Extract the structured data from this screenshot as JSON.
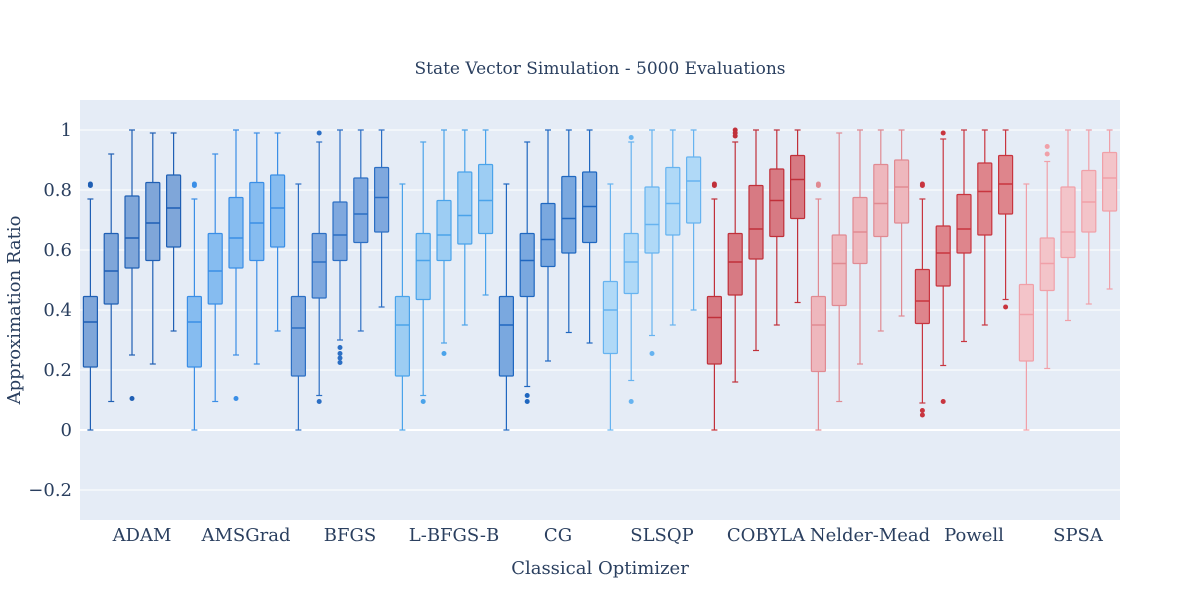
{
  "chart_data": {
    "type": "box",
    "title": "State Vector Simulation - 5000 Evaluations",
    "xlabel": "Classical Optimizer",
    "ylabel": "Approximation Ratio",
    "ylim": [
      -0.3,
      1.1
    ],
    "yticks": [
      -0.2,
      0,
      0.2,
      0.4,
      0.6,
      0.8,
      1
    ],
    "ytick_labels": [
      "−0.2",
      "0",
      "0.2",
      "0.4",
      "0.6",
      "0.8",
      "1"
    ],
    "grid": true,
    "categories": [
      "ADAM",
      "AMSGrad",
      "BFGS",
      "L-BFGS-B",
      "CG",
      "SLSQP",
      "COBYLA",
      "Nelder-Mead",
      "Powell",
      "SPSA"
    ],
    "colors": {
      "plot_bg": "#e5ecf6",
      "grid": "#ffffff",
      "text": "#2a3f5f",
      "ADAM": {
        "line": "#1f5fb4",
        "fill": "#7fa6d9"
      },
      "AMSGrad": {
        "line": "#3a8ee6",
        "fill": "#86bcf0"
      },
      "BFGS": {
        "line": "#2c6fc4",
        "fill": "#7fa8de"
      },
      "L-BFGS-B": {
        "line": "#4aa3ea",
        "fill": "#9dcdf3"
      },
      "CG": {
        "line": "#1f67c0",
        "fill": "#7aa8df"
      },
      "SLSQP": {
        "line": "#66b3f0",
        "fill": "#b0d9f7"
      },
      "COBYLA": {
        "line": "#c0303a",
        "fill": "#d77a83"
      },
      "Nelder-Mead": {
        "line": "#e08a92",
        "fill": "#eeb7bd"
      },
      "Powell": {
        "line": "#c8353f",
        "fill": "#de858c"
      },
      "SPSA": {
        "line": "#f0a0a8",
        "fill": "#f3c4c9"
      }
    },
    "groups": [
      {
        "name": "ADAM",
        "boxes": [
          {
            "min": 0,
            "q1": 0.21,
            "median": 0.36,
            "q3": 0.445,
            "max": 0.77,
            "outliers": [
              0.815,
              0.82
            ]
          },
          {
            "min": 0.095,
            "q1": 0.42,
            "median": 0.53,
            "q3": 0.655,
            "max": 0.92,
            "outliers": []
          },
          {
            "min": 0.25,
            "q1": 0.54,
            "median": 0.64,
            "q3": 0.78,
            "max": 1.0,
            "outliers": [
              0.105
            ]
          },
          {
            "min": 0.22,
            "q1": 0.565,
            "median": 0.69,
            "q3": 0.825,
            "max": 0.99,
            "outliers": []
          },
          {
            "min": 0.33,
            "q1": 0.61,
            "median": 0.74,
            "q3": 0.85,
            "max": 0.99,
            "outliers": []
          }
        ]
      },
      {
        "name": "AMSGrad",
        "boxes": [
          {
            "min": 0,
            "q1": 0.21,
            "median": 0.36,
            "q3": 0.445,
            "max": 0.77,
            "outliers": [
              0.815,
              0.82
            ]
          },
          {
            "min": 0.095,
            "q1": 0.42,
            "median": 0.53,
            "q3": 0.655,
            "max": 0.92,
            "outliers": []
          },
          {
            "min": 0.25,
            "q1": 0.54,
            "median": 0.64,
            "q3": 0.775,
            "max": 1.0,
            "outliers": [
              0.105
            ]
          },
          {
            "min": 0.22,
            "q1": 0.565,
            "median": 0.69,
            "q3": 0.825,
            "max": 0.99,
            "outliers": []
          },
          {
            "min": 0.33,
            "q1": 0.61,
            "median": 0.74,
            "q3": 0.85,
            "max": 0.99,
            "outliers": []
          }
        ]
      },
      {
        "name": "BFGS",
        "boxes": [
          {
            "min": 0,
            "q1": 0.18,
            "median": 0.34,
            "q3": 0.445,
            "max": 0.82,
            "outliers": []
          },
          {
            "min": 0.115,
            "q1": 0.44,
            "median": 0.56,
            "q3": 0.655,
            "max": 0.96,
            "outliers": [
              0.095,
              0.99
            ]
          },
          {
            "min": 0.3,
            "q1": 0.565,
            "median": 0.65,
            "q3": 0.76,
            "max": 1.0,
            "outliers": [
              0.225,
              0.24,
              0.255,
              0.275
            ]
          },
          {
            "min": 0.33,
            "q1": 0.625,
            "median": 0.72,
            "q3": 0.84,
            "max": 1.0,
            "outliers": []
          },
          {
            "min": 0.41,
            "q1": 0.66,
            "median": 0.775,
            "q3": 0.875,
            "max": 1.0,
            "outliers": []
          }
        ]
      },
      {
        "name": "L-BFGS-B",
        "boxes": [
          {
            "min": 0,
            "q1": 0.18,
            "median": 0.35,
            "q3": 0.445,
            "max": 0.82,
            "outliers": []
          },
          {
            "min": 0.115,
            "q1": 0.435,
            "median": 0.565,
            "q3": 0.655,
            "max": 0.96,
            "outliers": [
              0.095
            ]
          },
          {
            "min": 0.29,
            "q1": 0.565,
            "median": 0.65,
            "q3": 0.765,
            "max": 1.0,
            "outliers": [
              0.255
            ]
          },
          {
            "min": 0.35,
            "q1": 0.62,
            "median": 0.715,
            "q3": 0.86,
            "max": 1.0,
            "outliers": []
          },
          {
            "min": 0.45,
            "q1": 0.655,
            "median": 0.765,
            "q3": 0.885,
            "max": 1.0,
            "outliers": []
          }
        ]
      },
      {
        "name": "CG",
        "boxes": [
          {
            "min": 0,
            "q1": 0.18,
            "median": 0.35,
            "q3": 0.445,
            "max": 0.82,
            "outliers": []
          },
          {
            "min": 0.145,
            "q1": 0.445,
            "median": 0.565,
            "q3": 0.655,
            "max": 0.96,
            "outliers": [
              0.095,
              0.115
            ]
          },
          {
            "min": 0.23,
            "q1": 0.545,
            "median": 0.635,
            "q3": 0.755,
            "max": 1.0,
            "outliers": []
          },
          {
            "min": 0.325,
            "q1": 0.59,
            "median": 0.705,
            "q3": 0.845,
            "max": 1.0,
            "outliers": []
          },
          {
            "min": 0.29,
            "q1": 0.625,
            "median": 0.745,
            "q3": 0.86,
            "max": 1.0,
            "outliers": []
          }
        ]
      },
      {
        "name": "SLSQP",
        "boxes": [
          {
            "min": 0,
            "q1": 0.255,
            "median": 0.4,
            "q3": 0.495,
            "max": 0.82,
            "outliers": []
          },
          {
            "min": 0.165,
            "q1": 0.455,
            "median": 0.56,
            "q3": 0.655,
            "max": 0.96,
            "outliers": [
              0.095,
              0.975
            ]
          },
          {
            "min": 0.315,
            "q1": 0.59,
            "median": 0.685,
            "q3": 0.81,
            "max": 1.0,
            "outliers": [
              0.255
            ]
          },
          {
            "min": 0.35,
            "q1": 0.65,
            "median": 0.755,
            "q3": 0.875,
            "max": 1.0,
            "outliers": []
          },
          {
            "min": 0.4,
            "q1": 0.69,
            "median": 0.83,
            "q3": 0.91,
            "max": 1.0,
            "outliers": []
          }
        ]
      },
      {
        "name": "COBYLA",
        "boxes": [
          {
            "min": 0,
            "q1": 0.22,
            "median": 0.375,
            "q3": 0.445,
            "max": 0.77,
            "outliers": [
              0.815,
              0.82
            ]
          },
          {
            "min": 0.16,
            "q1": 0.45,
            "median": 0.56,
            "q3": 0.655,
            "max": 0.96,
            "outliers": [
              0.98,
              0.99,
              1.0
            ]
          },
          {
            "min": 0.265,
            "q1": 0.57,
            "median": 0.67,
            "q3": 0.815,
            "max": 1.0,
            "outliers": []
          },
          {
            "min": 0.35,
            "q1": 0.645,
            "median": 0.765,
            "q3": 0.87,
            "max": 1.0,
            "outliers": []
          },
          {
            "min": 0.425,
            "q1": 0.705,
            "median": 0.835,
            "q3": 0.915,
            "max": 1.0,
            "outliers": []
          }
        ]
      },
      {
        "name": "Nelder-Mead",
        "boxes": [
          {
            "min": 0,
            "q1": 0.195,
            "median": 0.35,
            "q3": 0.445,
            "max": 0.77,
            "outliers": [
              0.815,
              0.82
            ]
          },
          {
            "min": 0.095,
            "q1": 0.415,
            "median": 0.555,
            "q3": 0.65,
            "max": 0.99,
            "outliers": []
          },
          {
            "min": 0.22,
            "q1": 0.555,
            "median": 0.66,
            "q3": 0.775,
            "max": 1.0,
            "outliers": []
          },
          {
            "min": 0.33,
            "q1": 0.645,
            "median": 0.755,
            "q3": 0.885,
            "max": 1.0,
            "outliers": []
          },
          {
            "min": 0.38,
            "q1": 0.69,
            "median": 0.81,
            "q3": 0.9,
            "max": 1.0,
            "outliers": []
          }
        ]
      },
      {
        "name": "Powell",
        "boxes": [
          {
            "min": 0.09,
            "q1": 0.355,
            "median": 0.43,
            "q3": 0.535,
            "max": 0.77,
            "outliers": [
              0.05,
              0.065,
              0.815,
              0.82
            ]
          },
          {
            "min": 0.215,
            "q1": 0.48,
            "median": 0.59,
            "q3": 0.68,
            "max": 0.97,
            "outliers": [
              0.095,
              0.99
            ]
          },
          {
            "min": 0.295,
            "q1": 0.59,
            "median": 0.67,
            "q3": 0.785,
            "max": 1.0,
            "outliers": []
          },
          {
            "min": 0.35,
            "q1": 0.65,
            "median": 0.795,
            "q3": 0.89,
            "max": 1.0,
            "outliers": []
          },
          {
            "min": 0.435,
            "q1": 0.72,
            "median": 0.82,
            "q3": 0.915,
            "max": 1.0,
            "outliers": [
              0.41
            ]
          }
        ]
      },
      {
        "name": "SPSA",
        "boxes": [
          {
            "min": 0,
            "q1": 0.23,
            "median": 0.385,
            "q3": 0.485,
            "max": 0.82,
            "outliers": []
          },
          {
            "min": 0.205,
            "q1": 0.465,
            "median": 0.555,
            "q3": 0.64,
            "max": 0.895,
            "outliers": [
              0.92,
              0.945
            ]
          },
          {
            "min": 0.365,
            "q1": 0.575,
            "median": 0.66,
            "q3": 0.81,
            "max": 1.0,
            "outliers": []
          },
          {
            "min": 0.42,
            "q1": 0.66,
            "median": 0.76,
            "q3": 0.865,
            "max": 1.0,
            "outliers": []
          },
          {
            "min": 0.47,
            "q1": 0.73,
            "median": 0.84,
            "q3": 0.925,
            "max": 1.0,
            "outliers": []
          }
        ]
      }
    ]
  }
}
